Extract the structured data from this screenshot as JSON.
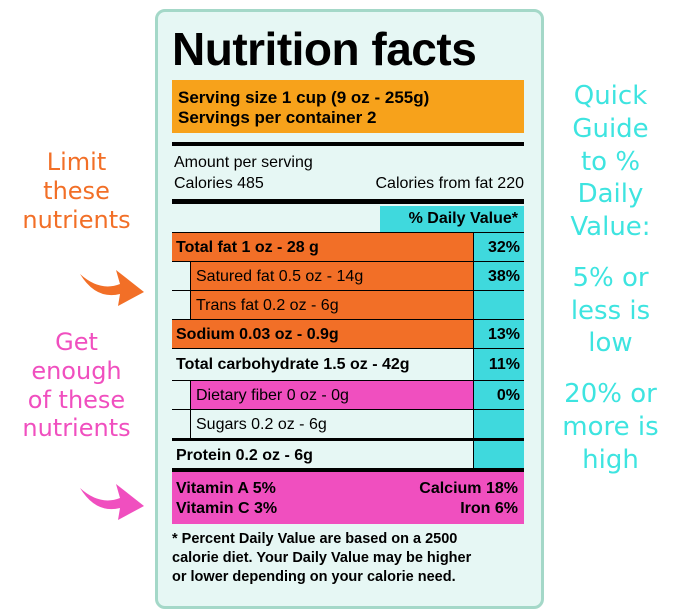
{
  "side_notes": {
    "limit": [
      "Limit",
      "these",
      "nutrients"
    ],
    "get": [
      "Get",
      "enough",
      "of these",
      "nutrients"
    ],
    "guide": [
      "Quick",
      "Guide",
      "to %",
      "Daily",
      "Value:",
      "5% or",
      "less is",
      "low",
      "20% or",
      "more is",
      "high"
    ]
  },
  "label": {
    "title": "Nutrition facts",
    "serving_size": "Serving size 1 cup (9 oz - 255g)",
    "servings_per_container": "Servings per container 2",
    "amount_per_serving": "Amount per serving",
    "calories": "Calories 485",
    "calories_from_fat": "Calories from fat 220",
    "daily_value_header": "% Daily Value*",
    "nutrients": [
      {
        "name": "Total fat 1 oz - 28 g",
        "pct": "32%"
      },
      {
        "name": "Satured fat 0.5 oz - 14g",
        "pct": "38%"
      },
      {
        "name": "Trans fat 0.2 oz - 6g",
        "pct": ""
      },
      {
        "name": "Sodium 0.03 oz - 0.9g",
        "pct": "13%"
      },
      {
        "name": "Total carbohydrate 1.5 oz - 42g",
        "pct": "11%"
      },
      {
        "name": "Dietary fiber 0 oz - 0g",
        "pct": "0%"
      },
      {
        "name": "Sugars 0.2 oz - 6g",
        "pct": ""
      },
      {
        "name": "Protein 0.2 oz - 6g",
        "pct": ""
      }
    ],
    "vitamins": {
      "vitamin_a": "Vitamin A   5%",
      "vitamin_c": "Vitamin C   3%",
      "calcium": "Calcium   18%",
      "iron": "Iron   6%"
    },
    "footnote": [
      "* Percent Daily Value are based on a 2500",
      "calorie diet. Your Daily Value may be higher",
      "or lower depending on your calorie need."
    ]
  },
  "colors": {
    "limit": "#f26f27",
    "get": "#f04fbf",
    "guide": "#3ee4e0",
    "serving": "#f7a21b",
    "daily_value": "#3fd9dd",
    "label_bg": "#e6f7f4",
    "label_border": "#a4d8c8"
  }
}
